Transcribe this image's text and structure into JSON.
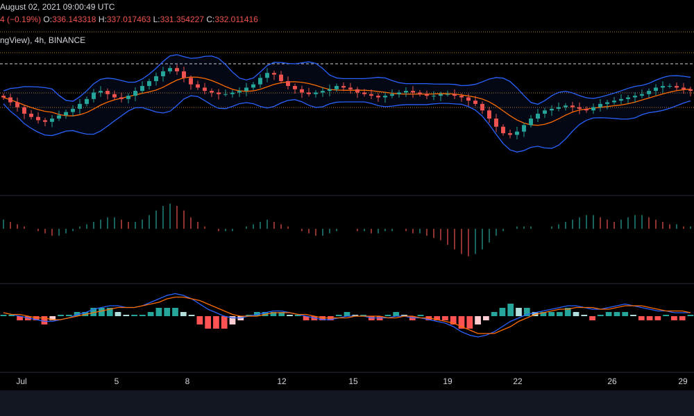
{
  "header": {
    "datetime": "August 02, 2021 09:00:49 UTC",
    "change_text": "4 (−0.19%)",
    "ohlc": [
      {
        "label": "O:",
        "value": "336.143318"
      },
      {
        "label": "H:",
        "value": "337.017463"
      },
      {
        "label": "L:",
        "value": "331.354227"
      },
      {
        "label": "C:",
        "value": "332.011416"
      }
    ],
    "source": "ngView), 4h, BINANCE"
  },
  "colors": {
    "up": "#26a69a",
    "down": "#ef5350",
    "band": "#2962ff",
    "basis": "#ff6d00",
    "ao_up": "#26a69a",
    "ao_down": "#ef5350",
    "macd_line": "#2962ff",
    "signal_line": "#ff6d00",
    "background": "#000000",
    "guide_line": "#f0a030"
  },
  "chart_data": [
    {
      "type": "candlestick",
      "title": "",
      "indicators": [
        "Bollinger Bands"
      ],
      "x_ticks": [
        "Jul",
        "5",
        "8",
        "12",
        "15",
        "19",
        "22",
        "26",
        "29"
      ],
      "closes": [
        348,
        345,
        342,
        338,
        336,
        334,
        333,
        335,
        337,
        339,
        341,
        344,
        347,
        351,
        352,
        350,
        348,
        347,
        349,
        352,
        355,
        358,
        361,
        364,
        366,
        364,
        360,
        356,
        354,
        352,
        351,
        350,
        350,
        351,
        352,
        354,
        356,
        360,
        363,
        362,
        358,
        355,
        353,
        351,
        350,
        351,
        352,
        353,
        355,
        354,
        353,
        351,
        350,
        349,
        348,
        349,
        350,
        351,
        352,
        351,
        350,
        349,
        349,
        350,
        350,
        349,
        348,
        346,
        344,
        340,
        335,
        330,
        326,
        325,
        327,
        331,
        335,
        338,
        340,
        341,
        342,
        343,
        342,
        341,
        340,
        342,
        344,
        345,
        346,
        347,
        348,
        349,
        350,
        352,
        354,
        355,
        355,
        354,
        353,
        352
      ]
    },
    {
      "type": "bar",
      "title": "",
      "indicators": [
        "Awesome Oscillator"
      ],
      "values": [
        4,
        3,
        2,
        1,
        0,
        -1,
        -2,
        -3,
        -3,
        -2,
        -1,
        1,
        2,
        3,
        4,
        5,
        5,
        4,
        3,
        3,
        4,
        6,
        8,
        10,
        11,
        10,
        8,
        5,
        3,
        1,
        0,
        -1,
        -1,
        -1,
        0,
        1,
        2,
        3,
        4,
        3,
        2,
        1,
        0,
        -1,
        -2,
        -3,
        -3,
        -2,
        -1,
        0,
        0,
        -1,
        -1,
        -2,
        -2,
        -1,
        -1,
        0,
        -1,
        -2,
        -2,
        -3,
        -4,
        -5,
        -7,
        -9,
        -11,
        -12,
        -11,
        -9,
        -6,
        -3,
        -1,
        0,
        1,
        1,
        1,
        0,
        0,
        1,
        2,
        3,
        4,
        5,
        6,
        6,
        5,
        4,
        3,
        4,
        5,
        6,
        6,
        5,
        4,
        3,
        2,
        2,
        1,
        1
      ]
    },
    {
      "type": "line",
      "title": "",
      "indicators": [
        "MACD"
      ],
      "series": [
        {
          "values": [
            2,
            1,
            0,
            -1,
            -2,
            -3,
            -3,
            -2,
            -1,
            1,
            2,
            4,
            5,
            6,
            6,
            5,
            5,
            6,
            8,
            10,
            12,
            13,
            12,
            10,
            7,
            4,
            2,
            0,
            -1,
            -1,
            0,
            1,
            2,
            3,
            3,
            2,
            1,
            0,
            -1,
            -2,
            -2,
            -1,
            0,
            0,
            0,
            -1,
            -1,
            -1,
            0,
            0,
            -1,
            -1,
            -2,
            -3,
            -4,
            -6,
            -9,
            -11,
            -12,
            -11,
            -9,
            -6,
            -3,
            -1,
            1,
            2,
            3,
            4,
            5,
            6,
            6,
            5,
            4,
            4,
            5,
            6,
            7,
            6,
            5,
            4,
            3,
            3,
            2,
            2,
            2
          ]
        },
        {
          "values": [
            2,
            1,
            1,
            0,
            -1,
            -1,
            -2,
            -2,
            -1,
            0,
            1,
            2,
            3,
            4,
            5,
            5,
            5,
            6,
            7,
            8,
            10,
            11,
            11,
            10,
            9,
            7,
            5,
            3,
            1,
            0,
            0,
            0,
            1,
            2,
            2,
            2,
            1,
            1,
            0,
            -1,
            -1,
            -1,
            -1,
            0,
            0,
            0,
            0,
            -1,
            -1,
            0,
            0,
            -1,
            -1,
            -2,
            -3,
            -4,
            -6,
            -8,
            -10,
            -10,
            -10,
            -8,
            -6,
            -3,
            -1,
            1,
            2,
            3,
            4,
            4,
            5,
            5,
            5,
            4,
            4,
            5,
            6,
            6,
            6,
            5,
            4,
            3,
            3,
            3,
            2
          ]
        }
      ]
    }
  ]
}
